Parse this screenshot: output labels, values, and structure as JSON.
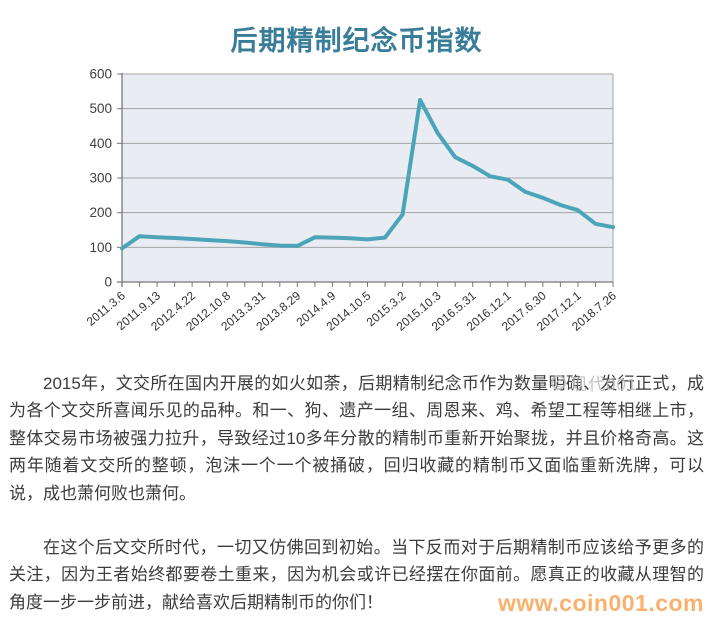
{
  "page": {
    "title": "后期精制纪念币指数",
    "chart_watermark": "现代001",
    "site_watermark": "www.coin001.com"
  },
  "article": {
    "paragraphs": [
      "2015年，文交所在国内开展的如火如荼，后期精制纪念币作为数量明确、发行正式，成为各个文交所喜闻乐见的品种。和一、狗、遗产一组、周恩来、鸡、希望工程等相继上市，整体交易市场被强力拉升，导致经过10多年分散的精制币重新开始聚拢，并且价格奇高。这两年随着文交所的整顿，泡沫一个一个被捅破，回归收藏的精制币又面临重新洗牌，可以说，成也萧何败也萧何。",
      "在这个后文交所时代，一切又仿佛回到初始。当下反而对于后期精制币应该给予更多的关注，因为王者始终都要卷土重来，因为机会或许已经摆在你面前。愿真正的收藏从理智的角度一步一步前进，献给喜欢后期精制币的你们！"
    ]
  },
  "colors": {
    "title": "#3a7d99",
    "line": "#4ba4b8",
    "plot_bg": "#e9edf3",
    "grid": "#a5a5a5",
    "axis": "#777777",
    "axis_label": "#3f3f3f",
    "text": "#3c3c3c",
    "watermark": "#bcbcbc",
    "site_watermark": "#f8b26d"
  },
  "chart_data": {
    "type": "line",
    "title": "后期精制纪念币指数",
    "categories": [
      "2011.3.6",
      "2011.9.13",
      "2012.4.22",
      "2012.10.8",
      "2013.3.31",
      "2013.8.29",
      "2014.4.9",
      "2014.10.5",
      "2015.3.2",
      "2015.10.3",
      "2016.5.31",
      "2016.12.1",
      "2017.6.30",
      "2017.12.1",
      "2018.7.26"
    ],
    "label_every": 2,
    "values": [
      97,
      132,
      129,
      127,
      124,
      121,
      118,
      114,
      109,
      105,
      104,
      129,
      128,
      126,
      123,
      128,
      195,
      525,
      430,
      360,
      335,
      305,
      295,
      260,
      243,
      222,
      207,
      168,
      158
    ],
    "values_at_labels": {
      "2011.3.6": 97,
      "2011.9.13": 129,
      "2012.4.22": 124,
      "2012.10.8": 118,
      "2013.3.31": 109,
      "2013.8.29": 104,
      "2014.4.9": 128,
      "2014.10.5": 123,
      "2015.3.2": 195,
      "2015.10.3": 430,
      "2016.5.31": 335,
      "2016.12.1": 295,
      "2017.6.30": 243,
      "2017.12.1": 207,
      "2018.7.26": 158
    },
    "peak_value": 525,
    "xlabel": "",
    "ylabel": "",
    "ylim": [
      0,
      600
    ],
    "y_ticks": [
      0,
      100,
      200,
      300,
      400,
      500,
      600
    ],
    "grid": true,
    "legend": "none"
  }
}
